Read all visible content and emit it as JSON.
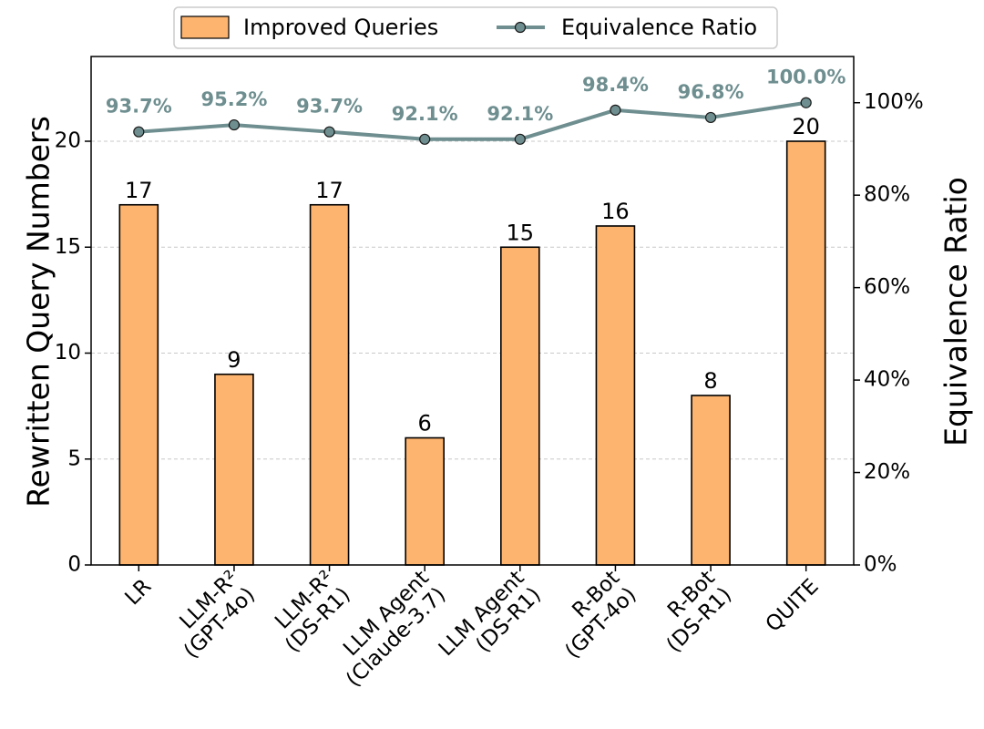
{
  "chart_data": {
    "type": "bar+line",
    "categories": [
      [
        "LR"
      ],
      [
        "LLM-R²",
        "(GPT-4o)"
      ],
      [
        "LLM-R²",
        "(DS-R1)"
      ],
      [
        "LLM Agent",
        "(Claude-3.7)"
      ],
      [
        "LLM Agent",
        "(DS-R1)"
      ],
      [
        "R-Bot",
        "(GPT-4o)"
      ],
      [
        "R-Bot",
        "(DS-R1)"
      ],
      [
        "QUITE"
      ]
    ],
    "bar_series": {
      "name": "Improved Queries",
      "values": [
        17,
        9,
        17,
        6,
        15,
        16,
        8,
        20
      ],
      "labels": [
        "17",
        "9",
        "17",
        "6",
        "15",
        "16",
        "8",
        "20"
      ],
      "color": "#fdb46f"
    },
    "line_series": {
      "name": "Equivalence Ratio",
      "values": [
        93.7,
        95.2,
        93.7,
        92.1,
        92.1,
        98.4,
        96.8,
        100.0
      ],
      "labels": [
        "93.7%",
        "95.2%",
        "93.7%",
        "92.1%",
        "92.1%",
        "98.4%",
        "96.8%",
        "100.0%"
      ],
      "color": "#6e8e8f"
    },
    "ylabel_left": "Rewritten Query Numbers",
    "ylabel_right": "Equivalence Ratio",
    "ylim_left": [
      0,
      24
    ],
    "yticks_left": [
      0,
      5,
      10,
      15,
      20
    ],
    "ytick_labels_left": [
      "0",
      "5",
      "10",
      "15",
      "20"
    ],
    "ylim_right": [
      0,
      110
    ],
    "yticks_right": [
      0,
      20,
      40,
      60,
      80,
      100
    ],
    "ytick_labels_right": [
      "0%",
      "20%",
      "40%",
      "60%",
      "80%",
      "100%"
    ],
    "grid": "horizontal dashed",
    "legend_placement": "top-center",
    "legend": [
      "Improved Queries",
      "Equivalence Ratio"
    ]
  }
}
